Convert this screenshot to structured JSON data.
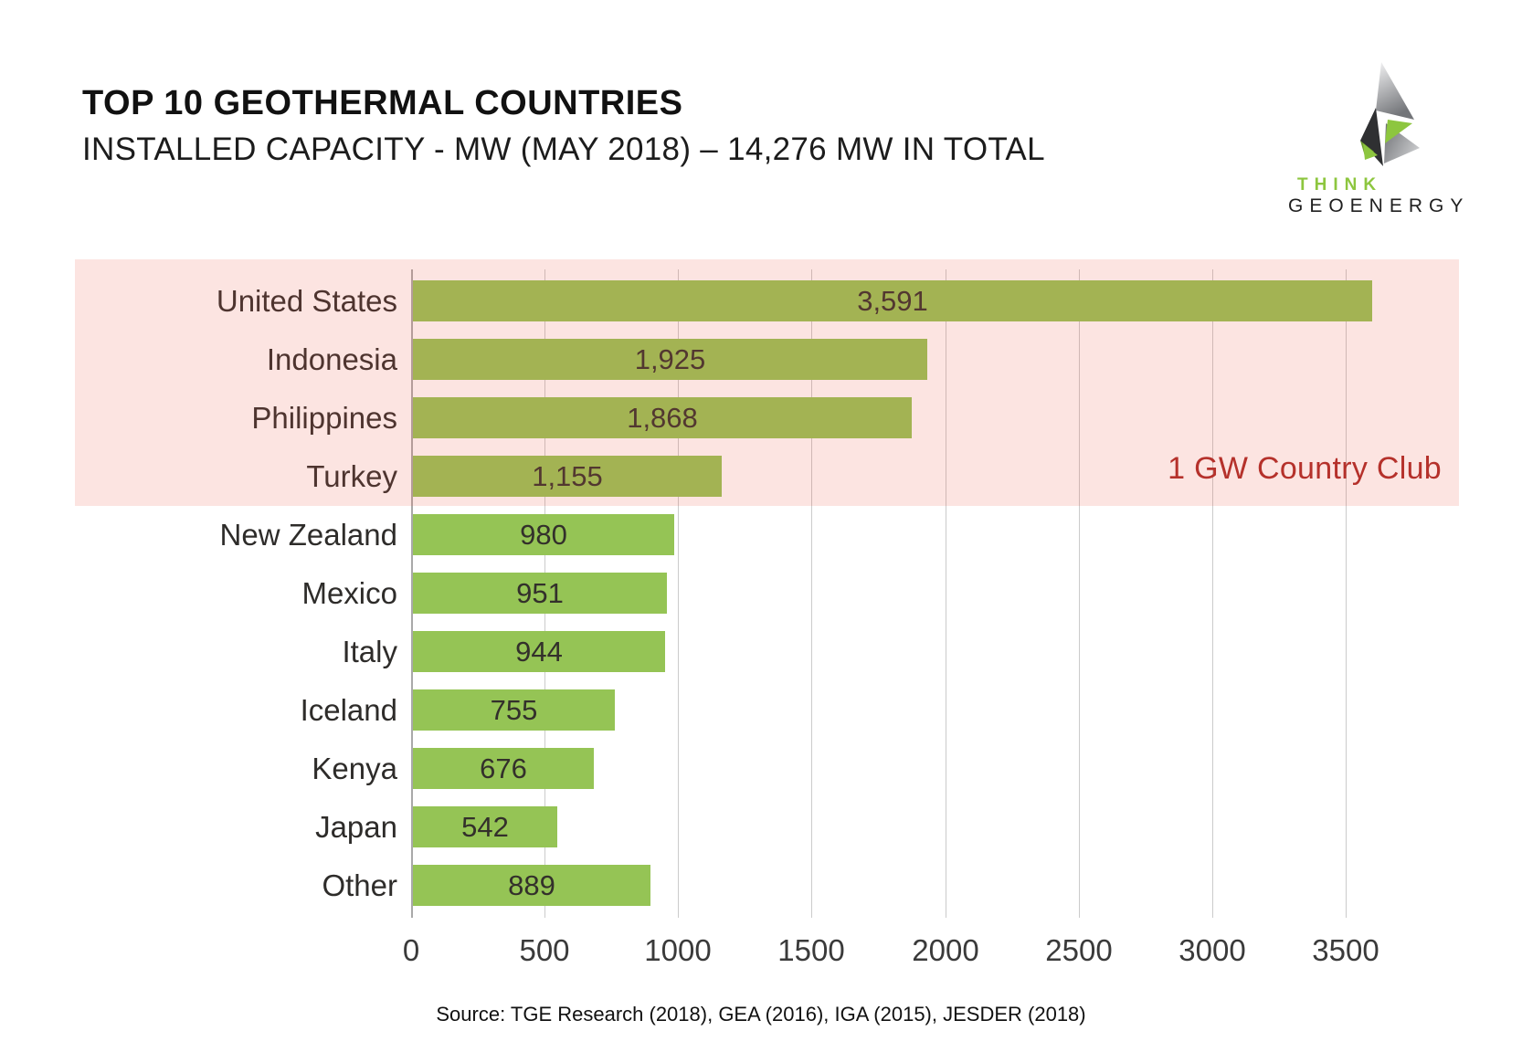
{
  "header": {
    "title": "TOP 10 GEOTHERMAL COUNTRIES",
    "subtitle": "INSTALLED CAPACITY - MW (MAY 2018) – 14,276 MW IN TOTAL"
  },
  "logo": {
    "line1": "THINK",
    "line2": "GEOENERGY",
    "green": "#8dc63f",
    "dark": "#2f3032",
    "grey": "#a9abae"
  },
  "annotation": {
    "text": "1 GW Country Club",
    "color": "#b5312b"
  },
  "source": "Source: TGE Research (2018), GEA (2016), IGA (2015), JESDER (2018)",
  "chart_data": {
    "type": "bar",
    "orientation": "horizontal",
    "title": "TOP 10 GEOTHERMAL COUNTRIES",
    "subtitle": "INSTALLED CAPACITY - MW (MAY 2018)",
    "total": "14,276 MW IN TOTAL",
    "categories": [
      "United States",
      "Indonesia",
      "Philippines",
      "Turkey",
      "New Zealand",
      "Mexico",
      "Italy",
      "Iceland",
      "Kenya",
      "Japan",
      "Other"
    ],
    "values": [
      3591,
      1925,
      1868,
      1155,
      980,
      951,
      944,
      755,
      676,
      542,
      889
    ],
    "display_values": [
      "3,591",
      "1,925",
      "1,868",
      "1,155",
      "980",
      "951",
      "944",
      "755",
      "676",
      "542",
      "889"
    ],
    "x_ticks": [
      0,
      500,
      1000,
      1500,
      2000,
      2500,
      3000,
      3500
    ],
    "xlim": [
      0,
      3925
    ],
    "xlabel": "",
    "ylabel": "",
    "grid": true,
    "legend": false,
    "bar_color": "#95c455",
    "highlighted_bar_color": "#a4b052",
    "highlight_band": {
      "covers_categories": [
        "United States",
        "Indonesia",
        "Philippines",
        "Turkey"
      ],
      "label": "1 GW Country Club",
      "fill": "#fbe3e0"
    }
  }
}
